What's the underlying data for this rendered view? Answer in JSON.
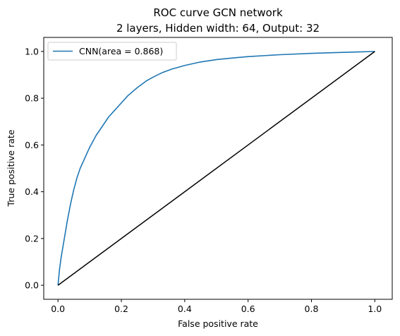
{
  "chart_data": {
    "type": "line",
    "title_lines": [
      "ROC curve GCN network",
      "2 layers, Hidden width: 64, Output: 32"
    ],
    "xlabel": "False positive rate",
    "ylabel": "True positive rate",
    "xlim": [
      -0.045,
      1.055
    ],
    "ylim": [
      -0.06,
      1.06
    ],
    "xticks": [
      0.0,
      0.2,
      0.4,
      0.6,
      0.8,
      1.0
    ],
    "yticks": [
      0.0,
      0.2,
      0.4,
      0.6,
      0.8,
      1.0
    ],
    "xtick_labels": [
      "0.0",
      "0.2",
      "0.4",
      "0.6",
      "0.8",
      "1.0"
    ],
    "ytick_labels": [
      "0.0",
      "0.2",
      "0.4",
      "0.6",
      "0.8",
      "1.0"
    ],
    "grid": false,
    "legend_position": "top-left",
    "series": [
      {
        "name": "CNN(area = 0.868)",
        "color": "#1f77b4",
        "x": [
          0.0,
          0.005,
          0.01,
          0.02,
          0.03,
          0.04,
          0.05,
          0.06,
          0.07,
          0.08,
          0.1,
          0.12,
          0.14,
          0.16,
          0.18,
          0.2,
          0.22,
          0.25,
          0.28,
          0.3,
          0.33,
          0.36,
          0.4,
          0.45,
          0.5,
          0.55,
          0.6,
          0.7,
          0.8,
          0.9,
          1.0
        ],
        "y": [
          0.0,
          0.07,
          0.12,
          0.2,
          0.28,
          0.35,
          0.41,
          0.46,
          0.5,
          0.53,
          0.59,
          0.64,
          0.68,
          0.72,
          0.75,
          0.78,
          0.81,
          0.845,
          0.875,
          0.89,
          0.91,
          0.925,
          0.94,
          0.955,
          0.965,
          0.972,
          0.978,
          0.986,
          0.992,
          0.996,
          1.0
        ]
      },
      {
        "color": "#000000",
        "x": [
          0.0,
          1.0
        ],
        "y": [
          0.0,
          1.0
        ]
      }
    ]
  }
}
